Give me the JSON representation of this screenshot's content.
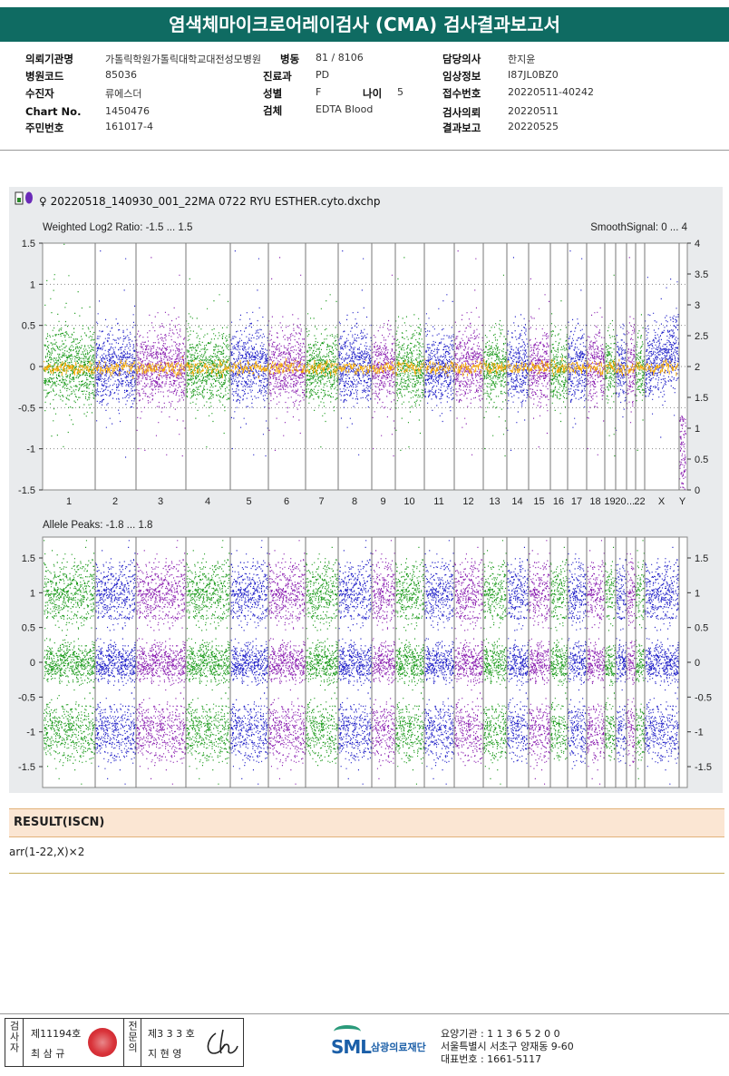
{
  "report": {
    "title": "염색체마이크로어레이검사 (CMA) 검사결과보고서"
  },
  "patient": {
    "hospital_label": "의뢰기관명",
    "hospital": "가톨릭학원가톨릭대학교대전성모병원",
    "code_label": "병원코드",
    "code": "85036",
    "name_label": "수진자",
    "name": "류에스더",
    "chart_label": "Chart No.",
    "chart": "1450476",
    "rrn_label": "주민번호",
    "rrn": "161017-4",
    "ward_label": "병동",
    "ward": "81 / 8106",
    "dept_label": "진료과",
    "dept": "PD",
    "sex_label": "성별",
    "sex": "F",
    "age_label": "나이",
    "age": "5",
    "specimen_label": "검체",
    "specimen": "EDTA Blood",
    "doctor_label": "담당의사",
    "doctor": "한지윤",
    "clinical_label": "임상정보",
    "clinical": "I87JL0BZ0",
    "accession_label": "접수번호",
    "accession": "20220511-40242",
    "request_label": "검사의뢰",
    "request": "20220511",
    "report_label": "결과보고",
    "report_date": "20220525"
  },
  "chart_data": {
    "type": "scatter",
    "file_name": "♀ 20220518_140930_001_22MA 0722 RYU ESTHER.cyto.dxchp",
    "chromosomes": [
      "1",
      "2",
      "3",
      "4",
      "5",
      "6",
      "7",
      "8",
      "9",
      "10",
      "11",
      "12",
      "13",
      "14",
      "15",
      "16",
      "17",
      "18",
      "19",
      "20",
      "...",
      "22",
      "X",
      "Y"
    ],
    "series_colors": [
      "#1a9a1a",
      "#2020c8",
      "#8a1fb0"
    ],
    "smooth_color": "#f5a800",
    "top": {
      "label": "Weighted Log2 Ratio: -1.5 ... 1.5",
      "right_label": "SmoothSignal: 0 ... 4",
      "ylim": [
        -1.5,
        1.5
      ],
      "yticks": [
        "1.5",
        "1",
        "0.5",
        "0",
        "-0.5",
        "-1",
        "-1.5"
      ],
      "right_ylim": [
        0,
        4
      ],
      "right_yticks": [
        "4",
        "3.5",
        "3",
        "2.5",
        "2",
        "1.5",
        "1",
        "0.5",
        "0"
      ],
      "smooth_signal": 2
    },
    "bottom": {
      "label": "Allele Peaks: -1.8 ... 1.8",
      "ylim": [
        -1.8,
        1.8
      ],
      "yticks": [
        "1.5",
        "1",
        "0.5",
        "0",
        "-0.5",
        "-1",
        "-1.5"
      ],
      "right_yticks": [
        "1.5",
        "1",
        "0.5",
        "0",
        "-0.5",
        "-1",
        "-1.5"
      ],
      "peaks": [
        1.0,
        0,
        -1.0
      ]
    }
  },
  "result": {
    "header": "RESULT(ISCN)",
    "text": "arr(1-22,X)×2"
  },
  "signature": {
    "col1": "검사자",
    "no1": "제11194호",
    "name1": "최 삼 규",
    "col2": "전문의",
    "no2": "제3 3 3 호",
    "name2": "지 현 영"
  },
  "footer": {
    "logo": "SML",
    "org": "삼광의료재단",
    "line1": "요양기관 : 1 1 3 6 5 2 0 0",
    "line2": "서울특별시 서초구 양재동 9-60",
    "line3": "대표번호 : 1661-5117"
  }
}
